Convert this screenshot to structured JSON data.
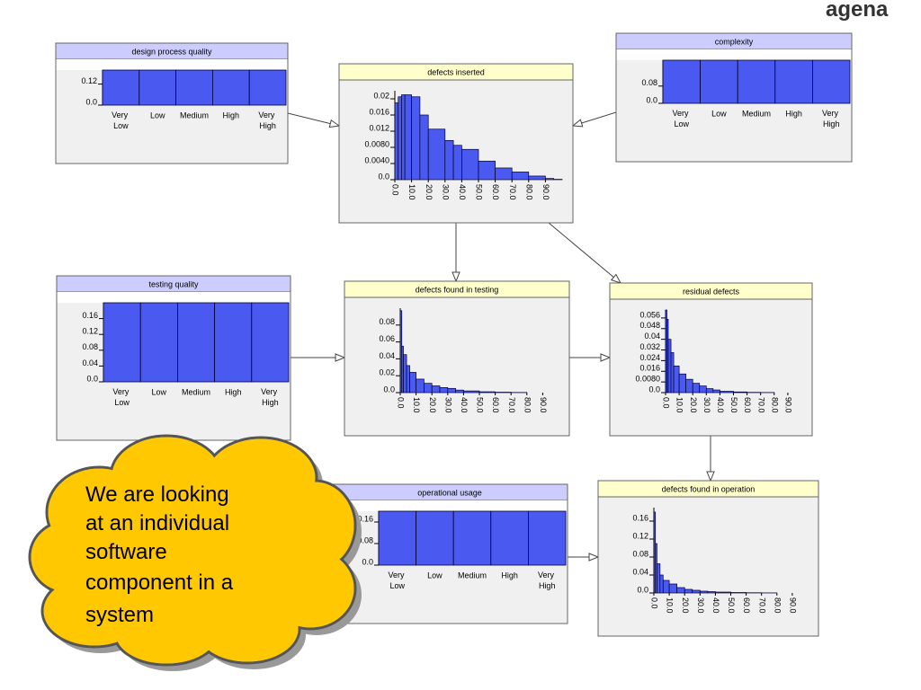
{
  "logo": "agena",
  "nodes": [
    {
      "title": "design process quality",
      "type": "bar",
      "categories": [
        "Very Low",
        "Low",
        "Medium",
        "High",
        "Very High"
      ],
      "values": [
        0.2,
        0.2,
        0.2,
        0.2,
        0.2
      ],
      "ylim": [
        0,
        0.2
      ],
      "yticks": [
        {
          "value": 0,
          "label": "0.0"
        },
        0.12
      ]
    },
    {
      "title": "complexity",
      "type": "bar",
      "categories": [
        "Very Low",
        "Low",
        "Medium",
        "High",
        "Very High"
      ],
      "values": [
        0.2,
        0.2,
        0.2,
        0.2,
        0.2
      ],
      "ylim": [
        0,
        0.2
      ],
      "yticks": [
        {
          "value": 0,
          "label": "0.0"
        },
        0.08
      ]
    },
    {
      "title": "defects inserted",
      "type": "histogram",
      "bins": [
        0,
        2,
        4,
        6,
        10,
        15,
        20,
        30,
        35,
        40,
        50,
        60,
        70,
        80,
        90,
        95,
        100
      ],
      "values": [
        0.019,
        0.0205,
        0.021,
        0.021,
        0.0205,
        0.016,
        0.0125,
        0.0097,
        0.0085,
        0.0075,
        0.0046,
        0.0029,
        0.0019,
        0.0009,
        0.0003,
        0.0001
      ],
      "xlim": [
        0,
        100
      ],
      "xticks": [
        {
          "value": 0,
          "label": "0.0"
        },
        {
          "value": 10,
          "label": "10.0"
        },
        {
          "value": 20,
          "label": "20.0"
        },
        {
          "value": 30,
          "label": "30.0"
        },
        {
          "value": 40,
          "label": "40.0"
        },
        {
          "value": 50,
          "label": "50.0"
        },
        {
          "value": 60,
          "label": "60.0"
        },
        {
          "value": 70,
          "label": "70.0"
        },
        {
          "value": 80,
          "label": "80.0"
        },
        {
          "value": 90,
          "label": "90.0"
        }
      ],
      "ylim": [
        0,
        0.022
      ],
      "yticks": [
        {
          "value": 0,
          "label": "0.0"
        },
        {
          "value": 0.004,
          "label": "0.0040"
        },
        {
          "value": 0.008,
          "label": "0.0080"
        },
        0.012,
        0.016,
        0.02
      ]
    },
    {
      "title": "testing quality",
      "type": "bar",
      "categories": [
        "Very Low",
        "Low",
        "Medium",
        "High",
        "Very High"
      ],
      "values": [
        0.2,
        0.2,
        0.2,
        0.2,
        0.2
      ],
      "ylim": [
        0,
        0.2
      ],
      "yticks": [
        {
          "value": 0,
          "label": "0.0"
        },
        0.04,
        0.08,
        0.12,
        0.16
      ]
    },
    {
      "title": "defects found in testing",
      "type": "histogram",
      "bins": [
        0,
        1,
        2,
        4,
        6,
        10,
        15,
        20,
        25,
        30,
        35,
        40,
        50,
        60,
        70,
        80
      ],
      "values": [
        0.097,
        0.055,
        0.045,
        0.032,
        0.024,
        0.016,
        0.011,
        0.008,
        0.006,
        0.005,
        0.003,
        0.002,
        0.001,
        0.0005,
        0.0002
      ],
      "xlim": [
        0,
        100
      ],
      "xticks": [
        {
          "value": 0,
          "label": "0.0"
        },
        {
          "value": 10,
          "label": "10.0"
        },
        {
          "value": 20,
          "label": "20.0"
        },
        {
          "value": 30,
          "label": "30.0"
        },
        {
          "value": 40,
          "label": "40.0"
        },
        {
          "value": 50,
          "label": "50.0"
        },
        {
          "value": 60,
          "label": "60.0"
        },
        {
          "value": 70,
          "label": "70.0"
        },
        {
          "value": 80,
          "label": "80.0"
        },
        {
          "value": 90,
          "label": "90.0"
        }
      ],
      "ylim": [
        0,
        0.1
      ],
      "yticks": [
        {
          "value": 0,
          "label": "0.0"
        },
        0.02,
        0.04,
        0.06,
        0.08
      ]
    },
    {
      "title": "residual defects",
      "type": "histogram",
      "bins": [
        0,
        1,
        2,
        4,
        6,
        10,
        15,
        20,
        25,
        30,
        35,
        40,
        50,
        60,
        70,
        80
      ],
      "values": [
        0.062,
        0.055,
        0.04,
        0.03,
        0.02,
        0.014,
        0.01,
        0.007,
        0.005,
        0.003,
        0.002,
        0.001,
        0.0005,
        0.0002,
        0.0001
      ],
      "xlim": [
        0,
        100
      ],
      "xticks": [
        {
          "value": 0,
          "label": "0.0"
        },
        {
          "value": 10,
          "label": "10.0"
        },
        {
          "value": 20,
          "label": "20.0"
        },
        {
          "value": 30,
          "label": "30.0"
        },
        {
          "value": 40,
          "label": "40.0"
        },
        {
          "value": 50,
          "label": "50.0"
        },
        {
          "value": 60,
          "label": "60.0"
        },
        {
          "value": 70,
          "label": "70.0"
        },
        {
          "value": 80,
          "label": "80.0"
        },
        {
          "value": 90,
          "label": "90.0"
        }
      ],
      "ylim": [
        0,
        0.062
      ],
      "yticks": [
        {
          "value": 0,
          "label": "0.0"
        },
        {
          "value": 0.008,
          "label": "0.0080"
        },
        0.016,
        0.024,
        0.032,
        0.04,
        0.048,
        0.056
      ]
    },
    {
      "title": "operational usage",
      "type": "bar",
      "categories": [
        "Very Low",
        "Low",
        "Medium",
        "High",
        "Very High"
      ],
      "values": [
        0.2,
        0.2,
        0.2,
        0.2,
        0.2
      ],
      "ylim": [
        0,
        0.2
      ],
      "yticks": [
        {
          "value": 0,
          "label": "0.0"
        },
        0.08,
        0.16
      ]
    },
    {
      "title": "defects found in operation",
      "type": "histogram",
      "bins": [
        0,
        1,
        2,
        4,
        6,
        10,
        15,
        20,
        25,
        30,
        35,
        40,
        50,
        60,
        70,
        80
      ],
      "values": [
        0.18,
        0.11,
        0.065,
        0.04,
        0.028,
        0.02,
        0.012,
        0.008,
        0.006,
        0.004,
        0.003,
        0.002,
        0.001,
        0.0005,
        0.0002
      ],
      "xlim": [
        0,
        100
      ],
      "xticks": [
        {
          "value": 0,
          "label": "0.0"
        },
        {
          "value": 10,
          "label": "10.0"
        },
        {
          "value": 20,
          "label": "20.0"
        },
        {
          "value": 30,
          "label": "30.0"
        },
        {
          "value": 40,
          "label": "40.0"
        },
        {
          "value": 50,
          "label": "50.0"
        },
        {
          "value": 60,
          "label": "60.0"
        },
        {
          "value": 70,
          "label": "70.0"
        },
        {
          "value": 80,
          "label": "80.0"
        },
        {
          "value": 90,
          "label": "90.0"
        }
      ],
      "ylim": [
        0,
        0.19
      ],
      "yticks": [
        {
          "value": 0,
          "label": "0.0"
        },
        0.04,
        0.08,
        0.12,
        0.16
      ]
    }
  ],
  "callout": {
    "lines": [
      "We are looking",
      "at an individual",
      "software",
      "component in a",
      "system"
    ]
  }
}
